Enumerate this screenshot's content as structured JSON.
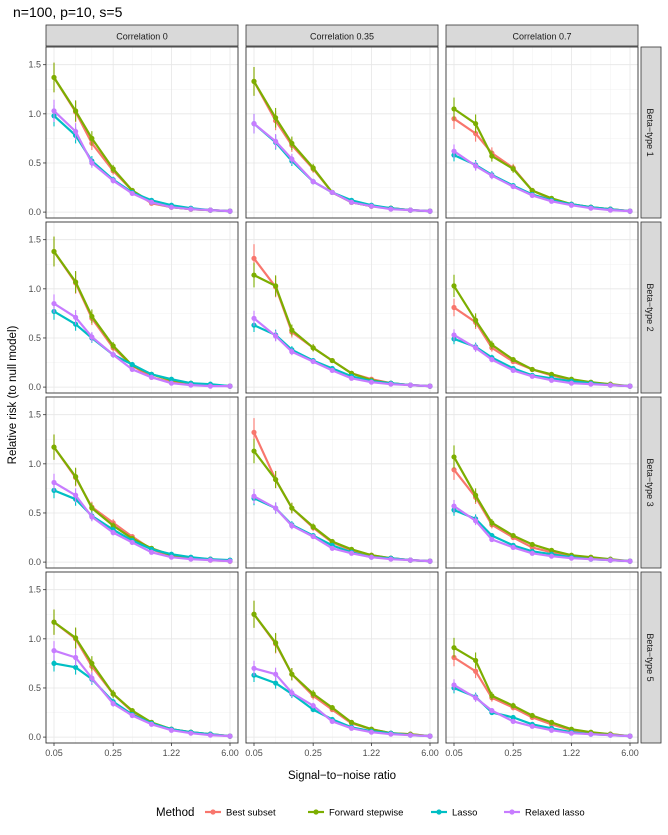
{
  "title": "n=100, p=10, s=5",
  "chart_data": {
    "type": "line",
    "title": "n=100, p=10, s=5",
    "xlabel": "Signal−to−noise ratio",
    "ylabel": "Relative risk (to null model)",
    "x_scale": "log",
    "x": [
      0.05,
      0.09,
      0.14,
      0.25,
      0.42,
      0.71,
      1.22,
      2.07,
      3.52,
      6.0
    ],
    "x_tick_labels": [
      "0.05",
      "0.25",
      "1.22",
      "6.00"
    ],
    "x_ticks": [
      0.05,
      0.25,
      1.22,
      6.0
    ],
    "y_tick_labels": [
      "0.0",
      "0.5",
      "1.0",
      "1.5"
    ],
    "y_ticks": [
      0,
      0.5,
      1.0,
      1.5
    ],
    "ylim": [
      -0.06,
      1.68
    ],
    "grid": true,
    "error_bars": true,
    "legend": {
      "title": "Method",
      "position": "bottom"
    },
    "columns": [
      "Correlation 0",
      "Correlation 0.35",
      "Correlation 0.7"
    ],
    "rows": [
      "Beta−type 1",
      "Beta−type 2",
      "Beta−type 3",
      "Beta−type 5"
    ],
    "methods": [
      {
        "name": "Best subset",
        "color": "#F8766D"
      },
      {
        "name": "Forward stepwise",
        "color": "#7CAE00"
      },
      {
        "name": "Lasso",
        "color": "#00BFC4"
      },
      {
        "name": "Relaxed lasso",
        "color": "#C77CFF"
      }
    ],
    "panels": [
      [
        {
          "Best subset": [
            1.37,
            1.02,
            0.7,
            0.42,
            0.22,
            0.09,
            0.05,
            0.03,
            0.02,
            0.01
          ],
          "Forward stepwise": [
            1.37,
            1.03,
            0.75,
            0.44,
            0.22,
            0.1,
            0.05,
            0.03,
            0.02,
            0.01
          ],
          "Lasso": [
            0.98,
            0.78,
            0.52,
            0.33,
            0.2,
            0.12,
            0.07,
            0.04,
            0.02,
            0.01
          ],
          "Relaxed lasso": [
            1.03,
            0.82,
            0.5,
            0.32,
            0.19,
            0.1,
            0.05,
            0.03,
            0.02,
            0.01
          ]
        },
        {
          "Best subset": [
            1.33,
            0.93,
            0.68,
            0.44,
            0.2,
            0.1,
            0.06,
            0.04,
            0.02,
            0.01
          ],
          "Forward stepwise": [
            1.33,
            0.96,
            0.7,
            0.45,
            0.2,
            0.1,
            0.06,
            0.04,
            0.02,
            0.01
          ],
          "Lasso": [
            0.9,
            0.71,
            0.52,
            0.31,
            0.2,
            0.12,
            0.07,
            0.04,
            0.02,
            0.01
          ],
          "Relaxed lasso": [
            0.9,
            0.72,
            0.54,
            0.31,
            0.2,
            0.1,
            0.06,
            0.03,
            0.02,
            0.01
          ]
        },
        {
          "Best subset": [
            0.95,
            0.8,
            0.6,
            0.45,
            0.22,
            0.13,
            0.08,
            0.05,
            0.03,
            0.01
          ],
          "Forward stepwise": [
            1.05,
            0.9,
            0.57,
            0.44,
            0.22,
            0.14,
            0.08,
            0.05,
            0.03,
            0.01
          ],
          "Lasso": [
            0.58,
            0.48,
            0.38,
            0.27,
            0.18,
            0.12,
            0.08,
            0.05,
            0.03,
            0.01
          ],
          "Relaxed lasso": [
            0.62,
            0.47,
            0.37,
            0.26,
            0.17,
            0.11,
            0.07,
            0.04,
            0.02,
            0.01
          ]
        }
      ],
      [
        {
          "Best subset": [
            1.38,
            1.06,
            0.7,
            0.4,
            0.22,
            0.1,
            0.05,
            0.03,
            0.02,
            0.01
          ],
          "Forward stepwise": [
            1.38,
            1.07,
            0.72,
            0.42,
            0.22,
            0.13,
            0.07,
            0.04,
            0.02,
            0.01
          ],
          "Lasso": [
            0.77,
            0.64,
            0.5,
            0.33,
            0.23,
            0.13,
            0.08,
            0.04,
            0.03,
            0.01
          ],
          "Relaxed lasso": [
            0.85,
            0.71,
            0.51,
            0.33,
            0.18,
            0.1,
            0.04,
            0.02,
            0.01,
            0.01
          ]
        },
        {
          "Best subset": [
            1.31,
            1.02,
            0.56,
            0.4,
            0.27,
            0.14,
            0.08,
            0.04,
            0.02,
            0.01
          ],
          "Forward stepwise": [
            1.14,
            1.03,
            0.58,
            0.4,
            0.27,
            0.14,
            0.07,
            0.04,
            0.02,
            0.01
          ],
          "Lasso": [
            0.63,
            0.53,
            0.38,
            0.27,
            0.19,
            0.11,
            0.06,
            0.04,
            0.02,
            0.01
          ],
          "Relaxed lasso": [
            0.7,
            0.52,
            0.36,
            0.26,
            0.17,
            0.09,
            0.05,
            0.03,
            0.02,
            0.01
          ]
        },
        {
          "Best subset": [
            0.81,
            0.66,
            0.4,
            0.26,
            0.18,
            0.12,
            0.07,
            0.04,
            0.02,
            0.01
          ],
          "Forward stepwise": [
            1.03,
            0.68,
            0.43,
            0.28,
            0.18,
            0.13,
            0.08,
            0.05,
            0.03,
            0.01
          ],
          "Lasso": [
            0.49,
            0.41,
            0.3,
            0.19,
            0.12,
            0.09,
            0.06,
            0.04,
            0.02,
            0.01
          ],
          "Relaxed lasso": [
            0.53,
            0.4,
            0.28,
            0.17,
            0.11,
            0.07,
            0.04,
            0.03,
            0.02,
            0.01
          ]
        }
      ],
      [
        {
          "Best subset": [
            1.17,
            0.86,
            0.56,
            0.4,
            0.26,
            0.13,
            0.06,
            0.04,
            0.02,
            0.01
          ],
          "Forward stepwise": [
            1.17,
            0.87,
            0.55,
            0.37,
            0.24,
            0.14,
            0.07,
            0.04,
            0.03,
            0.01
          ],
          "Lasso": [
            0.73,
            0.64,
            0.47,
            0.33,
            0.22,
            0.13,
            0.08,
            0.05,
            0.03,
            0.02
          ],
          "Relaxed lasso": [
            0.81,
            0.68,
            0.46,
            0.3,
            0.2,
            0.1,
            0.05,
            0.03,
            0.02,
            0.01
          ]
        },
        {
          "Best subset": [
            1.32,
            0.84,
            0.55,
            0.35,
            0.2,
            0.12,
            0.07,
            0.04,
            0.02,
            0.01
          ],
          "Forward stepwise": [
            1.13,
            0.84,
            0.55,
            0.36,
            0.21,
            0.13,
            0.07,
            0.04,
            0.02,
            0.01
          ],
          "Lasso": [
            0.65,
            0.55,
            0.38,
            0.27,
            0.17,
            0.1,
            0.05,
            0.04,
            0.02,
            0.01
          ],
          "Relaxed lasso": [
            0.67,
            0.55,
            0.37,
            0.26,
            0.14,
            0.09,
            0.05,
            0.03,
            0.02,
            0.01
          ]
        },
        {
          "Best subset": [
            0.94,
            0.66,
            0.38,
            0.25,
            0.15,
            0.1,
            0.06,
            0.04,
            0.02,
            0.01
          ],
          "Forward stepwise": [
            1.07,
            0.68,
            0.4,
            0.27,
            0.18,
            0.12,
            0.07,
            0.05,
            0.03,
            0.01
          ],
          "Lasso": [
            0.53,
            0.44,
            0.27,
            0.17,
            0.11,
            0.08,
            0.05,
            0.03,
            0.02,
            0.01
          ],
          "Relaxed lasso": [
            0.57,
            0.42,
            0.23,
            0.15,
            0.09,
            0.06,
            0.04,
            0.03,
            0.02,
            0.01
          ]
        }
      ],
      [
        {
          "Best subset": [
            1.17,
            1.0,
            0.72,
            0.44,
            0.26,
            0.14,
            0.08,
            0.05,
            0.03,
            0.01
          ],
          "Forward stepwise": [
            1.17,
            1.01,
            0.75,
            0.44,
            0.27,
            0.15,
            0.08,
            0.05,
            0.03,
            0.01
          ],
          "Lasso": [
            0.75,
            0.71,
            0.59,
            0.36,
            0.23,
            0.14,
            0.08,
            0.05,
            0.03,
            0.01
          ],
          "Relaxed lasso": [
            0.88,
            0.81,
            0.6,
            0.34,
            0.22,
            0.13,
            0.07,
            0.04,
            0.02,
            0.01
          ]
        },
        {
          "Best subset": [
            1.25,
            0.95,
            0.64,
            0.42,
            0.28,
            0.14,
            0.08,
            0.04,
            0.03,
            0.01
          ],
          "Forward stepwise": [
            1.25,
            0.96,
            0.64,
            0.44,
            0.3,
            0.15,
            0.08,
            0.04,
            0.03,
            0.01
          ],
          "Lasso": [
            0.63,
            0.55,
            0.44,
            0.28,
            0.18,
            0.1,
            0.06,
            0.04,
            0.02,
            0.01
          ],
          "Relaxed lasso": [
            0.7,
            0.64,
            0.45,
            0.32,
            0.16,
            0.09,
            0.05,
            0.03,
            0.02,
            0.01
          ]
        },
        {
          "Best subset": [
            0.81,
            0.67,
            0.4,
            0.3,
            0.2,
            0.13,
            0.07,
            0.04,
            0.03,
            0.01
          ],
          "Forward stepwise": [
            0.91,
            0.78,
            0.42,
            0.32,
            0.22,
            0.15,
            0.08,
            0.05,
            0.03,
            0.01
          ],
          "Lasso": [
            0.5,
            0.41,
            0.25,
            0.2,
            0.13,
            0.09,
            0.05,
            0.03,
            0.02,
            0.01
          ],
          "Relaxed lasso": [
            0.53,
            0.4,
            0.27,
            0.16,
            0.11,
            0.07,
            0.04,
            0.03,
            0.02,
            0.01
          ]
        }
      ]
    ]
  }
}
